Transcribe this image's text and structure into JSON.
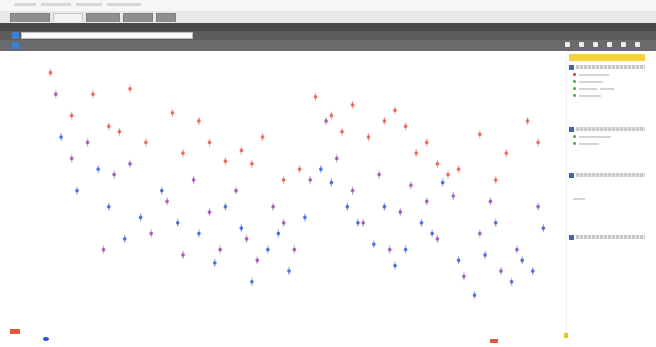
{
  "tabs": [
    {
      "label": "",
      "active": false
    },
    {
      "label": "",
      "active": true
    },
    {
      "label": "",
      "active": false
    },
    {
      "label": "",
      "active": false
    },
    {
      "label": "",
      "active": false
    }
  ],
  "subnav": {
    "items": [
      {
        "label": "",
        "highlight": false
      },
      {
        "label": "",
        "highlight": false
      },
      {
        "label": "",
        "highlight": false
      },
      {
        "label": "",
        "highlight": false
      },
      {
        "label": "",
        "highlight": true
      },
      {
        "label": "",
        "highlight": false
      }
    ]
  },
  "search": {
    "value": "",
    "placeholder": ""
  },
  "toolbar": {
    "tools": [
      {
        "label": "",
        "icon": "layers-icon"
      },
      {
        "label": "",
        "icon": "search-icon"
      },
      {
        "label": "",
        "icon": "print-icon"
      },
      {
        "label": "",
        "icon": "export-icon"
      },
      {
        "label": "",
        "icon": "help-icon"
      },
      {
        "label": "",
        "icon": "fullscreen-icon"
      }
    ]
  },
  "panel": {
    "title": ""
  },
  "colors": {
    "series_red": "#e84a3a",
    "series_blue": "#2b4fd6",
    "series_purple": "#8a3fb0",
    "accent_yellow": "#f3d23b",
    "accent_blue": "#3f66b5"
  },
  "chart_data": {
    "type": "scatter",
    "title": "",
    "xlabel": "",
    "ylabel": "",
    "grid": false,
    "legend": "none",
    "xlim": [
      0,
      100
    ],
    "ylim": [
      0,
      100
    ],
    "series": [
      {
        "color": "#e84a3a",
        "points": [
          [
            5,
            96
          ],
          [
            9,
            80
          ],
          [
            13,
            88
          ],
          [
            16,
            76
          ],
          [
            18,
            74
          ],
          [
            20,
            90
          ],
          [
            23,
            70
          ],
          [
            28,
            81
          ],
          [
            30,
            66
          ],
          [
            33,
            78
          ],
          [
            35,
            70
          ],
          [
            38,
            63
          ],
          [
            41,
            67
          ],
          [
            43,
            62
          ],
          [
            45,
            72
          ],
          [
            49,
            56
          ],
          [
            52,
            60
          ],
          [
            55,
            87
          ],
          [
            58,
            80
          ],
          [
            60,
            74
          ],
          [
            62,
            84
          ],
          [
            65,
            72
          ],
          [
            68,
            78
          ],
          [
            70,
            82
          ],
          [
            72,
            76
          ],
          [
            74,
            66
          ],
          [
            76,
            70
          ],
          [
            78,
            62
          ],
          [
            80,
            58
          ],
          [
            82,
            60
          ],
          [
            86,
            73
          ],
          [
            89,
            56
          ],
          [
            91,
            66
          ],
          [
            95,
            78
          ],
          [
            97,
            70
          ]
        ]
      },
      {
        "color": "#2b4fd6",
        "points": [
          [
            7,
            72
          ],
          [
            10,
            52
          ],
          [
            14,
            60
          ],
          [
            16,
            46
          ],
          [
            19,
            34
          ],
          [
            22,
            42
          ],
          [
            26,
            52
          ],
          [
            29,
            40
          ],
          [
            33,
            36
          ],
          [
            36,
            25
          ],
          [
            38,
            46
          ],
          [
            41,
            38
          ],
          [
            43,
            18
          ],
          [
            46,
            30
          ],
          [
            48,
            36
          ],
          [
            50,
            22
          ],
          [
            53,
            42
          ],
          [
            56,
            60
          ],
          [
            58,
            55
          ],
          [
            61,
            46
          ],
          [
            63,
            40
          ],
          [
            66,
            32
          ],
          [
            68,
            46
          ],
          [
            70,
            24
          ],
          [
            72,
            30
          ],
          [
            75,
            40
          ],
          [
            77,
            36
          ],
          [
            79,
            55
          ],
          [
            82,
            26
          ],
          [
            85,
            13
          ],
          [
            87,
            28
          ],
          [
            89,
            40
          ],
          [
            92,
            18
          ],
          [
            94,
            26
          ],
          [
            96,
            22
          ],
          [
            98,
            38
          ]
        ]
      },
      {
        "color": "#8a3fb0",
        "points": [
          [
            6,
            88
          ],
          [
            9,
            64
          ],
          [
            12,
            70
          ],
          [
            15,
            30
          ],
          [
            17,
            58
          ],
          [
            20,
            62
          ],
          [
            24,
            36
          ],
          [
            27,
            48
          ],
          [
            30,
            28
          ],
          [
            32,
            56
          ],
          [
            35,
            44
          ],
          [
            37,
            30
          ],
          [
            40,
            52
          ],
          [
            42,
            34
          ],
          [
            44,
            26
          ],
          [
            47,
            46
          ],
          [
            49,
            40
          ],
          [
            51,
            30
          ],
          [
            54,
            56
          ],
          [
            57,
            78
          ],
          [
            59,
            64
          ],
          [
            62,
            52
          ],
          [
            64,
            40
          ],
          [
            67,
            58
          ],
          [
            69,
            30
          ],
          [
            71,
            44
          ],
          [
            73,
            54
          ],
          [
            76,
            48
          ],
          [
            78,
            34
          ],
          [
            81,
            50
          ],
          [
            83,
            20
          ],
          [
            86,
            36
          ],
          [
            88,
            48
          ],
          [
            90,
            22
          ],
          [
            93,
            30
          ],
          [
            97,
            46
          ]
        ]
      }
    ]
  }
}
